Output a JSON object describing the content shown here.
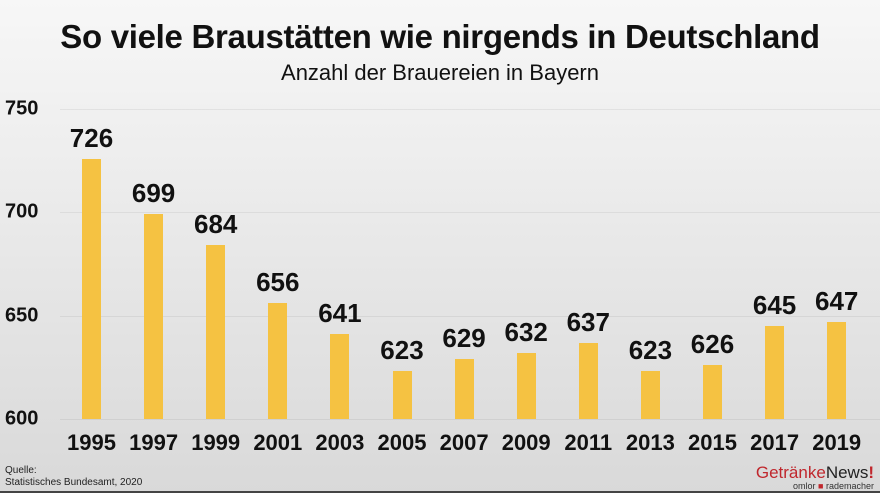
{
  "header": {
    "title": "So viele Braustätten wie nirgends in Deutschland",
    "subtitle": "Anzahl der Brauereien in Bayern"
  },
  "footer": {
    "source_label": "Quelle:",
    "source_text": "Statistisches Bundesamt, 2020",
    "logo_part1": "Getränke",
    "logo_part2": "News",
    "logo_exclaim": "!",
    "logo_sub_left": "omlor",
    "logo_sub_dot": "■",
    "logo_sub_right": "rademacher"
  },
  "colors": {
    "bar": "#f5c242",
    "logo_red": "#c0272d"
  },
  "chart_data": {
    "type": "bar",
    "title": "So viele Braustätten wie nirgends in Deutschland",
    "subtitle": "Anzahl der Brauereien in Bayern",
    "xlabel": "",
    "ylabel": "",
    "categories": [
      "1995",
      "1997",
      "1999",
      "2001",
      "2003",
      "2005",
      "2007",
      "2009",
      "2011",
      "2013",
      "2015",
      "2017",
      "2019"
    ],
    "values": [
      726,
      699,
      684,
      656,
      641,
      623,
      629,
      632,
      637,
      623,
      626,
      645,
      647
    ],
    "ylim": [
      600,
      750
    ],
    "yticks": [
      "600",
      "650",
      "700",
      "750"
    ],
    "grid": true,
    "legend": null,
    "data_labels": true,
    "source": "Quelle: Statistisches Bundesamt, 2020"
  }
}
